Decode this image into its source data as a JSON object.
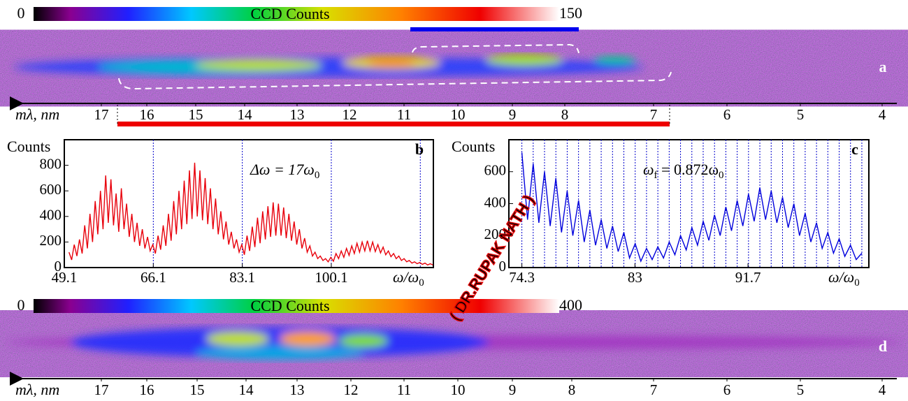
{
  "watermark": "( DR.RUPAK NATH )",
  "chart_data": [
    {
      "type": "image",
      "panel": "a",
      "colorbar": {
        "min": 0,
        "max": 150,
        "label": "CCD Counts"
      },
      "axis_label": "mλ, nm",
      "axis_ticks": [
        17,
        16,
        15,
        14,
        13,
        12,
        11,
        10,
        9,
        8,
        7,
        6,
        5,
        4
      ]
    },
    {
      "type": "line",
      "panel": "b",
      "ylabel": "Counts",
      "annotation": [
        "Δω = 17ω",
        "0"
      ],
      "xlabel": [
        "ω/ω",
        "0"
      ],
      "x": [
        50,
        50.5,
        51,
        51.5,
        52,
        52.5,
        53,
        53.5,
        54,
        54.5,
        55,
        55.5,
        56,
        56.5,
        57,
        57.5,
        58,
        58.5,
        59,
        59.5,
        60,
        60.5,
        61,
        61.5,
        62,
        62.5,
        63,
        63.5,
        64,
        64.5,
        65,
        65.5,
        66,
        66.5,
        67,
        67.5,
        68,
        68.5,
        69,
        69.5,
        70,
        70.5,
        71,
        71.5,
        72,
        72.5,
        73,
        73.5,
        74,
        74.5,
        75,
        75.5,
        76,
        76.5,
        77,
        77.5,
        78,
        78.5,
        79,
        79.5,
        80,
        80.5,
        81,
        81.5,
        82,
        82.5,
        83,
        83.5,
        84,
        84.5,
        85,
        85.5,
        86,
        86.5,
        87,
        87.5,
        88,
        88.5,
        89,
        89.5,
        90,
        90.5,
        91,
        91.5,
        92,
        92.5,
        93,
        93.5,
        94,
        94.5,
        95,
        95.5,
        96,
        96.5,
        97,
        97.5,
        98,
        98.5,
        99,
        99.5,
        100,
        100.5,
        101,
        101.5,
        102,
        102.5,
        103,
        103.5,
        104,
        104.5,
        105,
        105.5,
        106,
        106.5,
        107,
        107.5,
        108,
        108.5,
        109,
        109.5,
        110,
        110.5,
        111,
        111.5,
        112,
        112.5,
        113,
        113.5,
        114,
        114.5,
        115,
        115.5,
        116,
        116.5,
        117,
        117.5,
        118,
        118.5,
        119,
        119.5
      ],
      "series": [
        {
          "color": "#e8000b",
          "values": [
            120,
            60,
            180,
            90,
            220,
            110,
            330,
            150,
            420,
            200,
            520,
            260,
            600,
            300,
            720,
            350,
            690,
            330,
            580,
            280,
            620,
            300,
            500,
            240,
            420,
            200,
            350,
            170,
            300,
            150,
            240,
            130,
            180,
            110,
            250,
            140,
            330,
            170,
            420,
            210,
            520,
            260,
            600,
            300,
            680,
            340,
            760,
            380,
            820,
            400,
            760,
            370,
            700,
            340,
            620,
            300,
            540,
            260,
            440,
            220,
            360,
            180,
            280,
            150,
            220,
            120,
            180,
            100,
            250,
            130,
            320,
            160,
            390,
            190,
            440,
            220,
            480,
            240,
            510,
            250,
            500,
            250,
            470,
            230,
            420,
            210,
            360,
            180,
            300,
            150,
            230,
            120,
            170,
            90,
            120,
            70,
            90,
            55,
            70,
            45,
            80,
            50,
            110,
            70,
            130,
            80,
            150,
            95,
            170,
            110,
            190,
            120,
            200,
            130,
            210,
            130,
            200,
            125,
            180,
            115,
            160,
            100,
            130,
            85,
            110,
            70,
            90,
            55,
            70,
            45,
            55,
            35,
            45,
            30,
            40,
            25,
            35,
            20,
            30,
            20
          ]
        }
      ],
      "xlim": [
        49.1,
        119.6
      ],
      "ylim": [
        0,
        1000
      ],
      "xticks": [
        49.1,
        66.1,
        83.1,
        100.1
      ],
      "yticks": [
        0,
        200,
        400,
        600,
        800
      ],
      "vlines": [
        66.1,
        83.1,
        100.1,
        117.1
      ],
      "vline_color": "#0000cc"
    },
    {
      "type": "line",
      "panel": "c",
      "ylabel": "Counts",
      "annotation": [
        "ω",
        "f",
        " = 0.872ω",
        "0"
      ],
      "xlabel": [
        "ω/ω",
        "0"
      ],
      "x": [
        74.3,
        74.736,
        75.172,
        75.608,
        76.044,
        76.48,
        76.916,
        77.352,
        77.788,
        78.224,
        78.66,
        79.096,
        79.532,
        79.968,
        80.404,
        80.84,
        81.276,
        81.712,
        82.148,
        82.584,
        83.02,
        83.456,
        83.892,
        84.328,
        84.764,
        85.2,
        85.636,
        86.072,
        86.508,
        86.944,
        87.38,
        87.816,
        88.252,
        88.688,
        89.124,
        89.56,
        89.996,
        90.432,
        90.868,
        91.304,
        91.74,
        92.176,
        92.612,
        93.048,
        93.484,
        93.92,
        94.356,
        94.792,
        95.228,
        95.664,
        96.1,
        96.536,
        96.972,
        97.408,
        97.844,
        98.28,
        98.716,
        99.152,
        99.588,
        100.024,
        100.46
      ],
      "series": [
        {
          "color": "#0000dd",
          "values": [
            720,
            300,
            650,
            280,
            600,
            260,
            560,
            220,
            480,
            200,
            420,
            160,
            360,
            140,
            300,
            120,
            260,
            100,
            220,
            60,
            150,
            40,
            120,
            50,
            130,
            60,
            160,
            80,
            200,
            110,
            250,
            140,
            290,
            170,
            330,
            200,
            380,
            230,
            420,
            260,
            460,
            290,
            500,
            300,
            480,
            280,
            440,
            250,
            400,
            200,
            340,
            160,
            280,
            120,
            220,
            90,
            180,
            70,
            140,
            50,
            90
          ]
        }
      ],
      "xlim": [
        73.3,
        101
      ],
      "ylim": [
        0,
        800
      ],
      "xticks": [
        74.3,
        83.0,
        91.7
      ],
      "yticks": [
        0,
        200,
        400,
        600
      ],
      "vlines": [
        74.3,
        75.172,
        76.044,
        76.916,
        77.788,
        78.66,
        79.532,
        80.404,
        81.276,
        82.148,
        83.02,
        83.892,
        84.764,
        85.636,
        86.508,
        87.38,
        88.252,
        89.124,
        89.996,
        90.868,
        91.74,
        92.612,
        93.484,
        94.356,
        95.228,
        96.1,
        96.972,
        97.844,
        98.716,
        99.588,
        100.46
      ],
      "vline_color": "#0000cc"
    },
    {
      "type": "image",
      "panel": "d",
      "colorbar": {
        "min": 0,
        "max": 400,
        "label": "CCD Counts"
      },
      "axis_label": "mλ, nm",
      "axis_ticks": [
        17,
        16,
        15,
        14,
        13,
        12,
        11,
        10,
        9,
        8,
        7,
        6,
        5,
        4
      ]
    }
  ]
}
